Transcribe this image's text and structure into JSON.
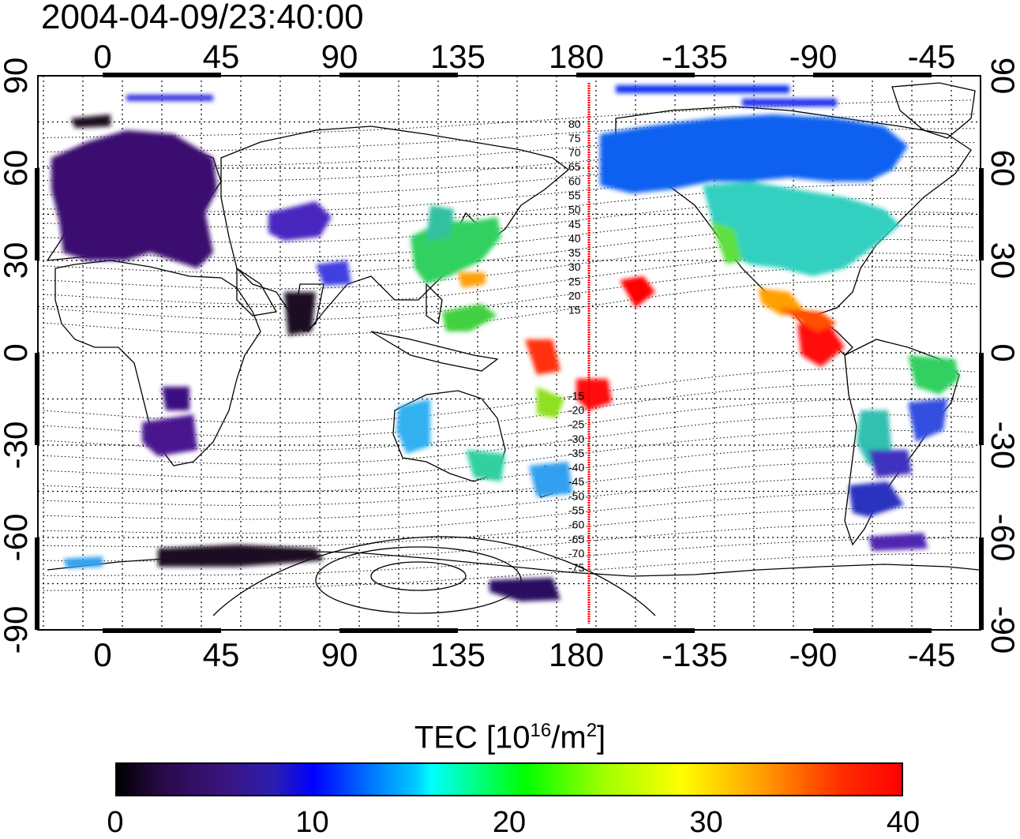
{
  "title": "2004-04-09/23:40:00",
  "map": {
    "lon_ticks": [
      "0",
      "45",
      "90",
      "135",
      "180",
      "-135",
      "-90",
      "-45"
    ],
    "lat_ticks_left": [
      "90",
      "60",
      "30",
      "0",
      "-30",
      "-60",
      "-90"
    ],
    "lat_ticks_right": [
      "90",
      "60",
      "30",
      "0",
      "-30",
      "-60",
      "-90"
    ],
    "magnetic_lat_labels": [
      "80",
      "75",
      "70",
      "65",
      "60",
      "55",
      "50",
      "45",
      "40",
      "35",
      "30",
      "25",
      "20",
      "15",
      "-15",
      "-20",
      "-25",
      "-30",
      "-35",
      "-40",
      "-45",
      "-50",
      "-55",
      "-60",
      "-65",
      "-70",
      "-75"
    ],
    "marker_line_color": "#ff0000",
    "tec_blobs": [
      {
        "region": "europe",
        "tec": 3
      },
      {
        "region": "north-america",
        "tec": 15
      },
      {
        "region": "central-america",
        "tec": 36
      },
      {
        "region": "pacific",
        "tec": 38
      },
      {
        "region": "japan",
        "tec": 21
      },
      {
        "region": "australia",
        "tec": 16
      },
      {
        "region": "south-america",
        "tec": 8
      },
      {
        "region": "antarctica",
        "tec": 2
      }
    ]
  },
  "colorbar": {
    "title_main": "TEC  [10",
    "title_sup1": "16",
    "title_mid": "/m",
    "title_sup2": "2",
    "title_end": "]",
    "labels": [
      "0",
      "10",
      "20",
      "30",
      "40"
    ],
    "min": 0,
    "max": 40
  }
}
